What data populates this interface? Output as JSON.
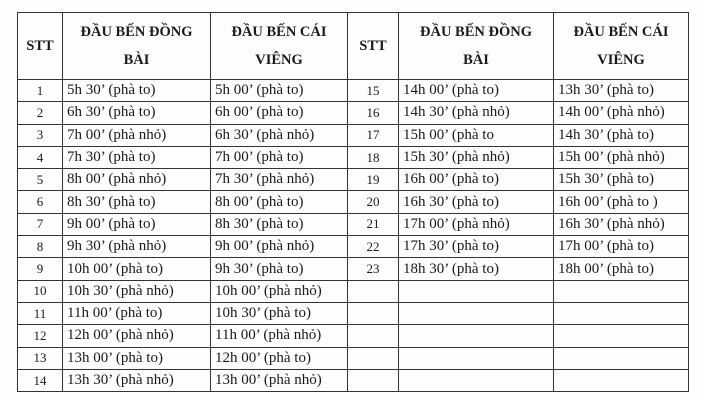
{
  "headers": [
    {
      "line1": "STT",
      "line2": ""
    },
    {
      "line1": "ĐẦU BẾN ĐỒNG",
      "line2": "BÀI"
    },
    {
      "line1": "ĐẦU BẾN CÁI",
      "line2": "VIÊNG"
    },
    {
      "line1": "STT",
      "line2": ""
    },
    {
      "line1": "ĐẦU BẾN ĐỒNG",
      "line2": "BÀI"
    },
    {
      "line1": "ĐẦU BẾN CÁI",
      "line2": "VIÊNG"
    }
  ],
  "rows": [
    [
      [
        "1",
        "5h 30’ (phà to)",
        "5h 00’ (phà to)"
      ],
      [
        "15",
        "14h 00’ (phà to)",
        "13h 30’ (phà to)"
      ]
    ],
    [
      [
        "2",
        "6h 30’ (phà to)",
        "6h 00’ (phà to)"
      ],
      [
        "16",
        "14h 30’ (phà nhỏ)",
        "14h 00’ (phà nhỏ)"
      ]
    ],
    [
      [
        "3",
        "7h 00’ (phà nhỏ)",
        "6h 30’ (phà nhỏ)"
      ],
      [
        "17",
        "15h 00’ (phà to",
        "14h 30’ (phà to)"
      ]
    ],
    [
      [
        "4",
        "7h 30’ (phà to)",
        "7h 00’ (phà to)"
      ],
      [
        "18",
        "15h 30’ (phà nhỏ)",
        "15h 00’ (phà nhỏ)"
      ]
    ],
    [
      [
        "5",
        "8h 00’ (phà nhỏ)",
        "7h 30’ (phà nhỏ)"
      ],
      [
        "19",
        "16h 00’ (phà to)",
        "15h 30’ (phà to)"
      ]
    ],
    [
      [
        "6",
        "8h 30’ (phà to)",
        "8h 00’ (phà to)"
      ],
      [
        "20",
        "16h 30’ (phà to)",
        "16h 00’ (phà to )"
      ]
    ],
    [
      [
        "7",
        "9h 00’ (phà to)",
        "8h 30’ (phà to)"
      ],
      [
        "21",
        "17h 00’ (phà nhỏ)",
        "16h 30’ (phà nhỏ)"
      ]
    ],
    [
      [
        "8",
        "9h 30’ (phà nhỏ)",
        "9h 00’ (phà nhỏ)"
      ],
      [
        "22",
        "17h 30’ (phà to)",
        "17h 00’ (phà to)"
      ]
    ],
    [
      [
        "9",
        "10h 00’ (phà to)",
        "9h 30’ (phà to)"
      ],
      [
        "23",
        "18h 30’ (phà to)",
        "18h 00’ (phà to)"
      ]
    ],
    [
      [
        "10",
        "10h 30’ (phà nhỏ)",
        "10h 00’ (phà nhỏ)"
      ],
      [
        "",
        "",
        ""
      ]
    ],
    [
      [
        "11",
        "11h 00’ (phà to)",
        "10h 30’ (phà to)"
      ],
      [
        "",
        "",
        ""
      ]
    ],
    [
      [
        "12",
        "12h 00’ (phà nhỏ)",
        "11h 00’ (phà nhỏ)"
      ],
      [
        "",
        "",
        ""
      ]
    ],
    [
      [
        "13",
        "13h 00’ (phà to)",
        "12h 00’ (phà to)"
      ],
      [
        "",
        "",
        ""
      ]
    ],
    [
      [
        "14",
        "13h 30’ (phà nhỏ)",
        "13h 00’ (phà nhỏ)"
      ],
      [
        "",
        "",
        ""
      ]
    ]
  ]
}
